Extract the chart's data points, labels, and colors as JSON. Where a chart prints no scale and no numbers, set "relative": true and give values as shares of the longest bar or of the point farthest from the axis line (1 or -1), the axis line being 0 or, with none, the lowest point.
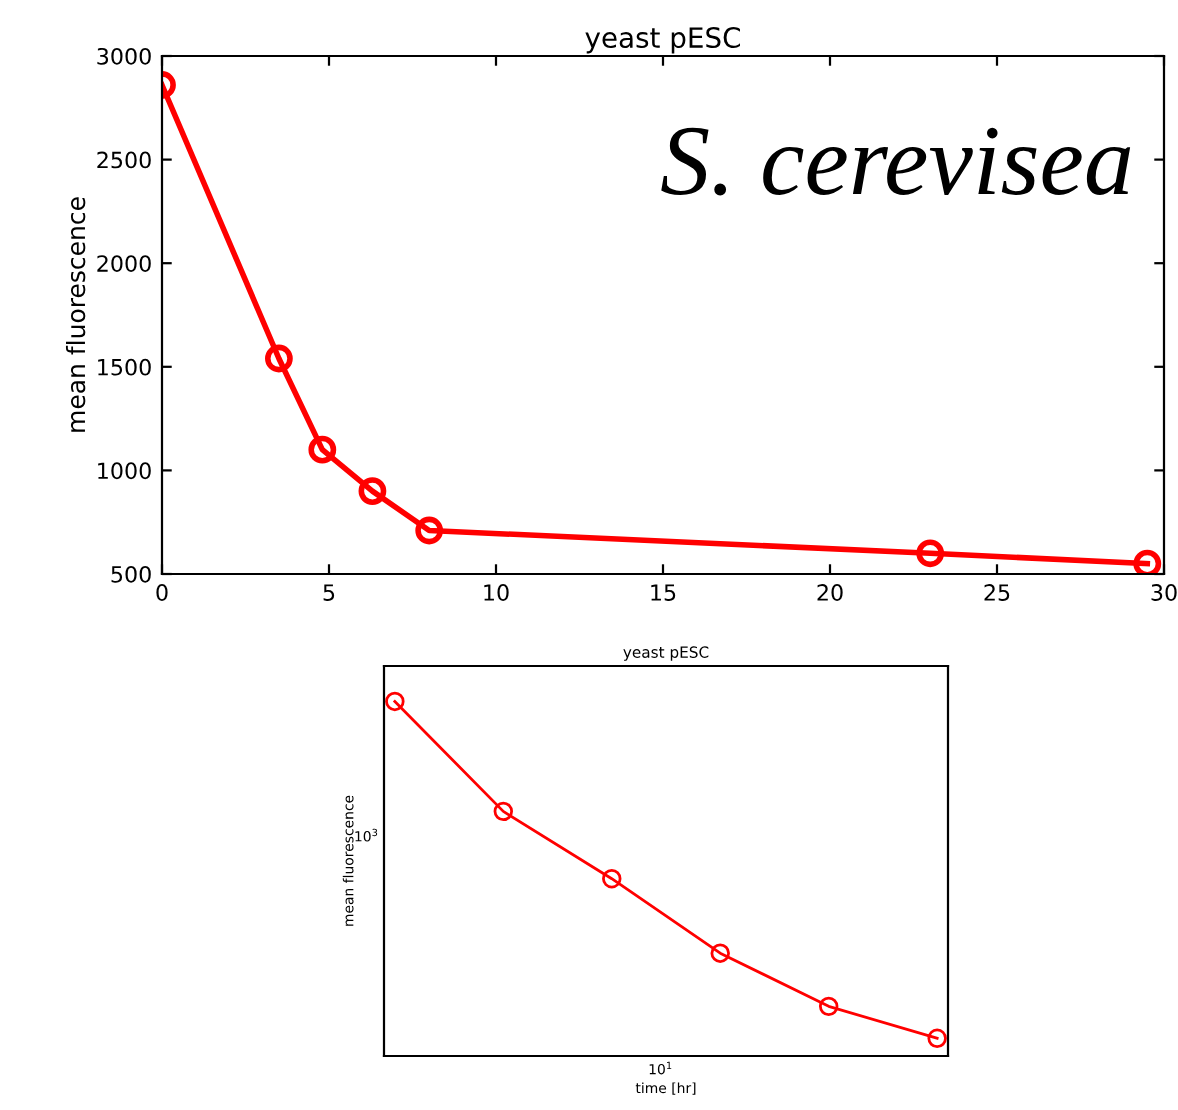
{
  "chart_data": [
    {
      "type": "line",
      "title": "yeast pESC",
      "ylabel": "mean fluorescence",
      "annotations": [
        "S. cerevisea"
      ],
      "x": [
        0,
        3.5,
        4.8,
        6.3,
        8,
        23,
        29.5
      ],
      "series": [
        {
          "color": "#ff0000",
          "values": [
            2860,
            1540,
            1100,
            900,
            710,
            600,
            550
          ]
        }
      ],
      "xlim": [
        0,
        30
      ],
      "xticks": [
        0,
        5,
        10,
        15,
        20,
        25,
        30
      ],
      "ylim": [
        500,
        3000
      ],
      "yticks": [
        500,
        1000,
        1500,
        2000,
        2500,
        3000
      ],
      "grid": false,
      "legend": false,
      "marker": "circle",
      "line_style": "solid"
    },
    {
      "type": "line",
      "title": "yeast pESC",
      "xlabel": "time [hr]",
      "ylabel": "mean fluorescence",
      "relative": true,
      "annotations": [
        "10$^{1}$",
        "10$^{3}$"
      ],
      "categories": [
        null,
        null,
        null,
        null,
        null,
        null
      ],
      "series": [
        {
          "color": "#ff0000",
          "values": [
            1,
            0.69,
            0.5,
            0.29,
            0.14,
            0.05
          ]
        }
      ],
      "grid": false,
      "legend": false,
      "marker": "circle",
      "line_style": "solid"
    }
  ]
}
